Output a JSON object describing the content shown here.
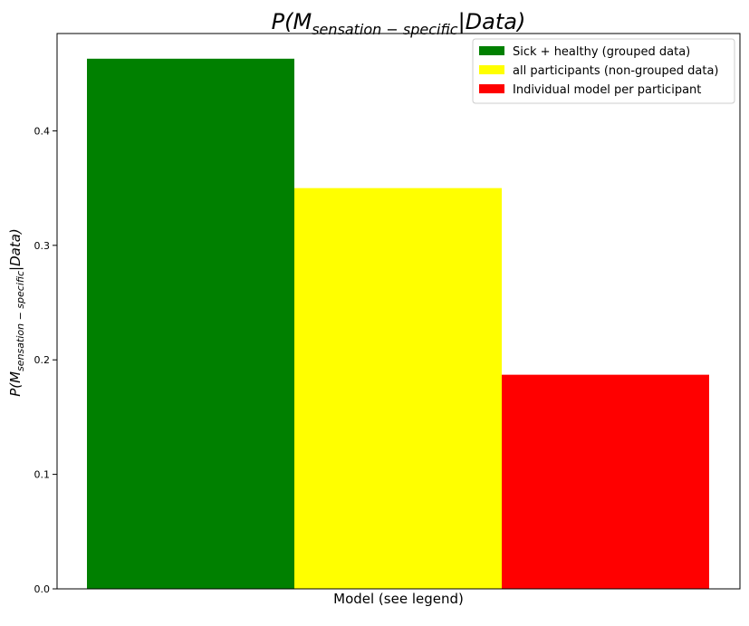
{
  "chart_data": {
    "type": "bar",
    "title": {
      "prefix": "P(M",
      "subscript": "sensation − specific",
      "suffix": "|Data)"
    },
    "xlabel": "Model (see legend)",
    "ylabel": {
      "prefix": "P(M",
      "subscript": "sensation − specific",
      "suffix": "|Data)"
    },
    "ylim": [
      0,
      0.485
    ],
    "yticks": [
      0.0,
      0.1,
      0.2,
      0.3,
      0.4
    ],
    "ytick_labels": [
      "0.0",
      "0.1",
      "0.2",
      "0.3",
      "0.4"
    ],
    "grid": false,
    "legend_position": "top-right",
    "series": [
      {
        "name": "Sick + healthy (grouped data)",
        "value": 0.463,
        "color": "#008000"
      },
      {
        "name": "all participants (non-grouped data)",
        "value": 0.35,
        "color": "#ffff00"
      },
      {
        "name": "Individual model per participant",
        "value": 0.187,
        "color": "#ff0000"
      }
    ]
  }
}
